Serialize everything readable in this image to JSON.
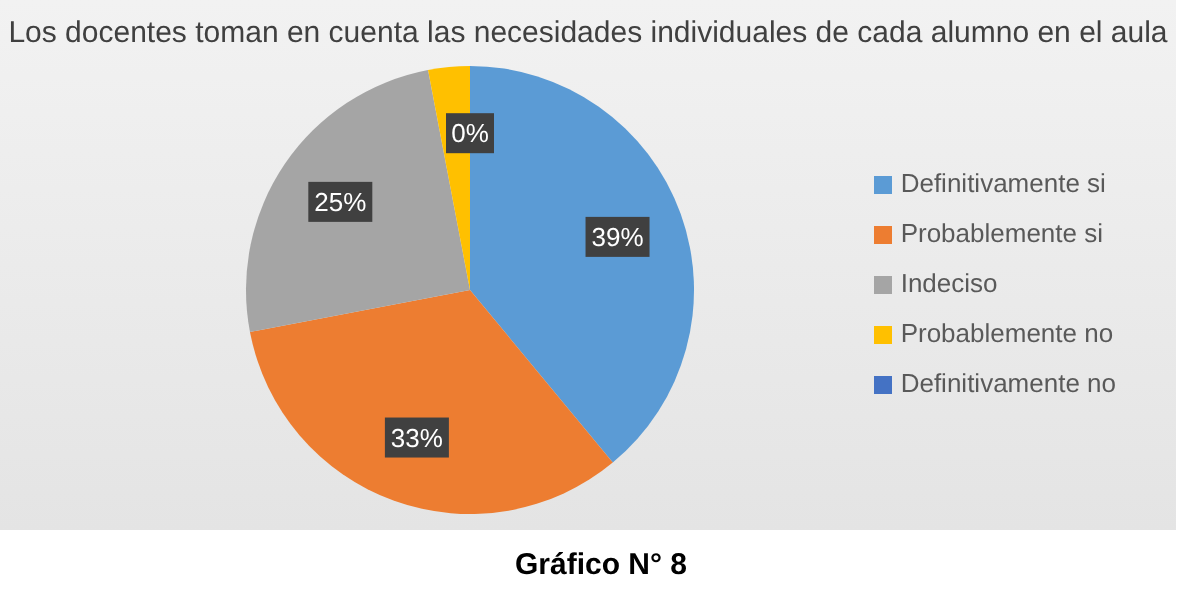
{
  "chart_data": {
    "type": "pie",
    "title": "Los docentes toman en cuenta las necesidades individuales de cada alumno en el aula",
    "categories": [
      "Definitivamente si",
      "Probablemente si",
      "Indeciso",
      "Probablemente no",
      "Definitivamente no"
    ],
    "values": [
      39,
      33,
      25,
      3,
      0
    ],
    "colors": [
      "#5b9bd5",
      "#ed7d31",
      "#a5a5a5",
      "#ffc000",
      "#4472c4"
    ],
    "value_labels": [
      "39%",
      "33%",
      "25%",
      null,
      "0%"
    ],
    "legend": "right",
    "annotations": [
      "Gráfico N° 8"
    ]
  }
}
